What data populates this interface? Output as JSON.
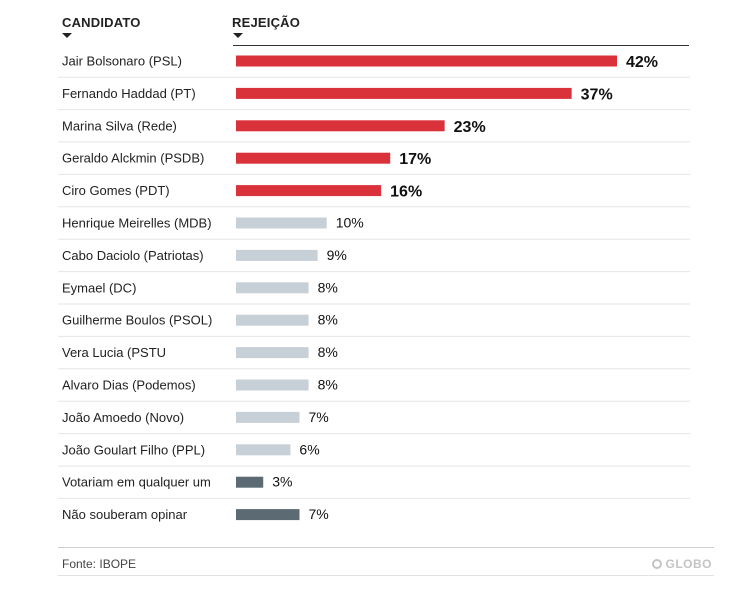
{
  "header": {
    "candidate_label": "CANDIDATO",
    "rejection_label": "REJEIÇÃO"
  },
  "chart_data": {
    "type": "bar",
    "orientation": "horizontal",
    "title": "",
    "xlabel": "REJEIÇÃO",
    "ylabel": "CANDIDATO",
    "xlim": [
      0,
      42
    ],
    "categories": [
      "Jair Bolsonaro (PSL)",
      "Fernando Haddad (PT)",
      "Marina Silva (Rede)",
      "Geraldo Alckmin (PSDB)",
      "Ciro Gomes (PDT)",
      "Henrique Meirelles (MDB)",
      "Cabo Daciolo (Patriotas)",
      "Eymael (DC)",
      "Guilherme Boulos (PSOL)",
      "Vera Lucia (PSTU",
      "Alvaro Dias (Podemos)",
      "João Amoedo (Novo)",
      "João Goulart Filho (PPL)",
      "Votariam em qualquer um",
      "Não souberam opinar"
    ],
    "values": [
      42,
      37,
      23,
      17,
      16,
      10,
      9,
      8,
      8,
      8,
      8,
      7,
      6,
      3,
      7
    ],
    "value_labels": [
      "42%",
      "37%",
      "23%",
      "17%",
      "16%",
      "10%",
      "9%",
      "8%",
      "8%",
      "8%",
      "8%",
      "7%",
      "6%",
      "3%",
      "7%"
    ],
    "groups": [
      "top",
      "top",
      "top",
      "top",
      "top",
      "other",
      "other",
      "other",
      "other",
      "other",
      "other",
      "other",
      "other",
      "special",
      "special"
    ],
    "colors": {
      "top": "#d9323a",
      "other": "#c8d0d7",
      "special": "#5c6b73"
    }
  },
  "footer": {
    "source": "Fonte: IBOPE",
    "logo": "GLOBO"
  }
}
